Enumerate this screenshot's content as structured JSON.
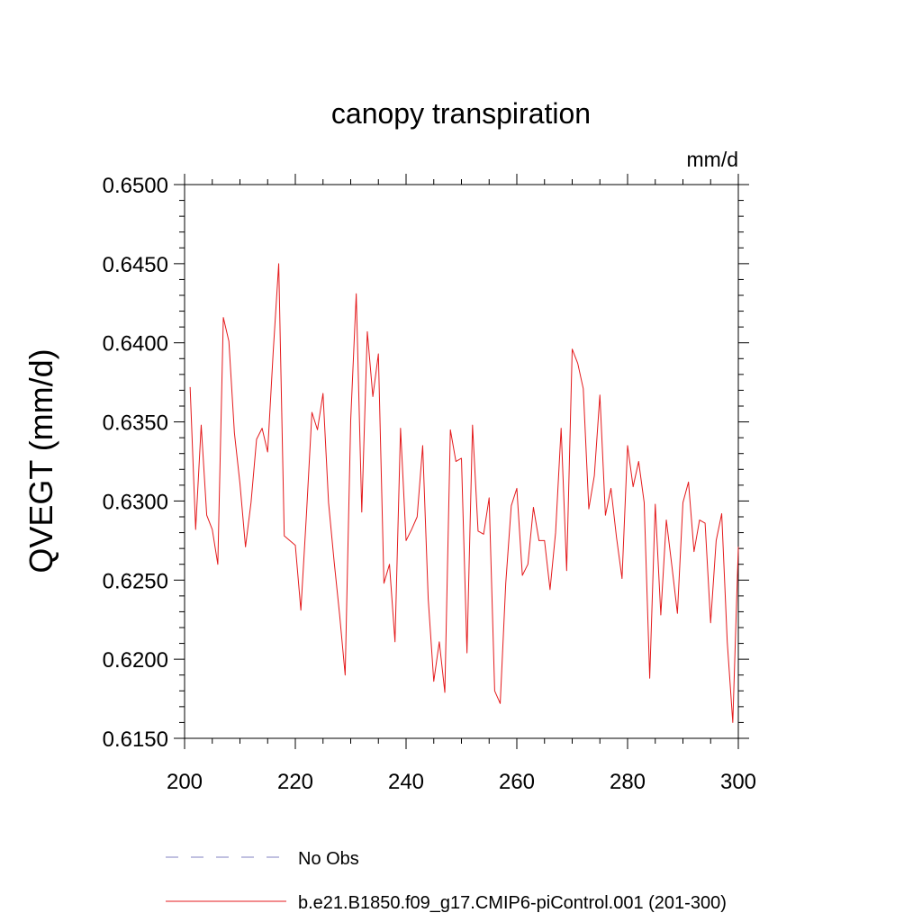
{
  "chart_data": {
    "type": "line",
    "title": "canopy transpiration",
    "units": "mm/d",
    "ylabel": "QVEGT  (mm/d)",
    "xlabel": "",
    "xlim": [
      200,
      300
    ],
    "ylim": [
      0.615,
      0.65
    ],
    "xticks": [
      200,
      220,
      240,
      260,
      280,
      300
    ],
    "xtick_labels": [
      "200",
      "220",
      "240",
      "260",
      "280",
      "300"
    ],
    "yticks": [
      0.615,
      0.62,
      0.625,
      0.63,
      0.635,
      0.64,
      0.645,
      0.65
    ],
    "ytick_labels": [
      "0.6150",
      "0.6200",
      "0.6250",
      "0.6300",
      "0.6350",
      "0.6400",
      "0.6450",
      "0.6500"
    ],
    "grid": false,
    "legend_position": "bottom",
    "series": [
      {
        "name": "b.e21.B1850.f09_g17.CMIP6-piControl.001 (201-300)",
        "color": "#e41a1c",
        "style": "solid",
        "x": [
          201,
          202,
          203,
          204,
          205,
          206,
          207,
          208,
          209,
          210,
          211,
          212,
          213,
          214,
          215,
          216,
          217,
          218,
          219,
          220,
          221,
          222,
          223,
          224,
          225,
          226,
          227,
          228,
          229,
          230,
          231,
          232,
          233,
          234,
          235,
          236,
          237,
          238,
          239,
          240,
          241,
          242,
          243,
          244,
          245,
          246,
          247,
          248,
          249,
          250,
          251,
          252,
          253,
          254,
          255,
          256,
          257,
          258,
          259,
          260,
          261,
          262,
          263,
          264,
          265,
          266,
          267,
          268,
          269,
          270,
          271,
          272,
          273,
          274,
          275,
          276,
          277,
          278,
          279,
          280,
          281,
          282,
          283,
          284,
          285,
          286,
          287,
          288,
          289,
          290,
          291,
          292,
          293,
          294,
          295,
          296,
          297,
          298,
          299,
          300
        ],
        "y": [
          0.6372,
          0.6282,
          0.6348,
          0.6291,
          0.6282,
          0.626,
          0.6416,
          0.6401,
          0.6343,
          0.6311,
          0.6271,
          0.6299,
          0.6339,
          0.6346,
          0.6331,
          0.6394,
          0.645,
          0.6278,
          0.6275,
          0.6272,
          0.6231,
          0.6291,
          0.6356,
          0.6345,
          0.6368,
          0.6299,
          0.6262,
          0.6228,
          0.619,
          0.6351,
          0.6431,
          0.6293,
          0.6407,
          0.6366,
          0.6393,
          0.6248,
          0.626,
          0.6211,
          0.6346,
          0.6275,
          0.6282,
          0.629,
          0.6335,
          0.6238,
          0.6186,
          0.6211,
          0.6179,
          0.6345,
          0.6325,
          0.6327,
          0.6204,
          0.6348,
          0.6281,
          0.6279,
          0.6302,
          0.618,
          0.6172,
          0.6248,
          0.6297,
          0.6308,
          0.6253,
          0.626,
          0.6296,
          0.6275,
          0.6275,
          0.6244,
          0.628,
          0.6346,
          0.6256,
          0.6396,
          0.6387,
          0.6371,
          0.6295,
          0.6316,
          0.6367,
          0.6291,
          0.6308,
          0.6277,
          0.6251,
          0.6335,
          0.6309,
          0.6325,
          0.6299,
          0.6188,
          0.6298,
          0.6228,
          0.6288,
          0.6259,
          0.6229,
          0.6299,
          0.6312,
          0.6268,
          0.6288,
          0.6286,
          0.6223,
          0.6275,
          0.6292,
          0.6211,
          0.616,
          0.6271
        ]
      },
      {
        "name": "No Obs",
        "color": "#8080c0",
        "style": "dashed",
        "x": [],
        "y": []
      }
    ]
  }
}
